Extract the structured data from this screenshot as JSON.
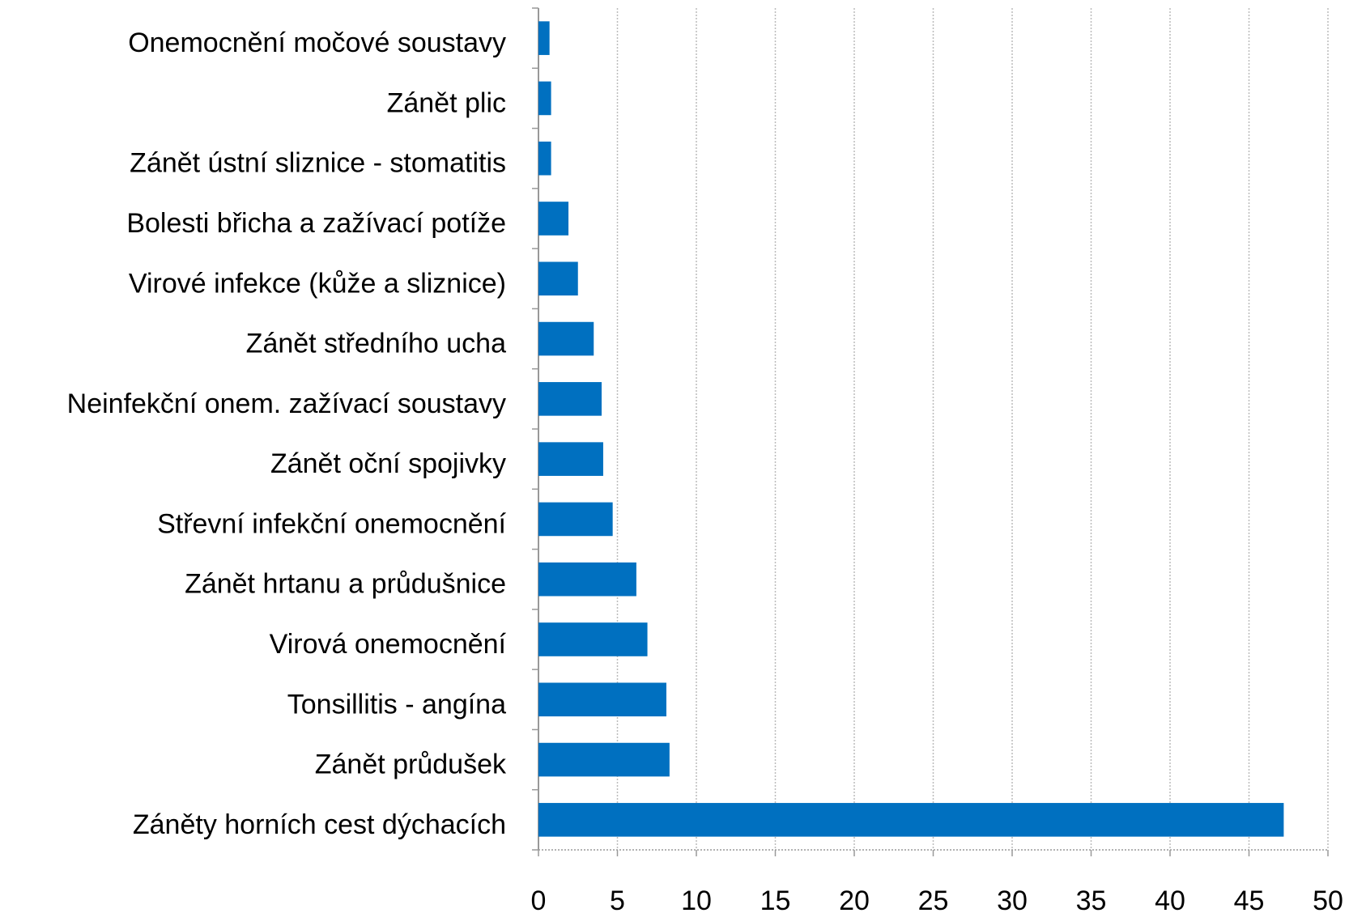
{
  "chart_data": {
    "type": "hbar",
    "categories": [
      "Onemocnění močové soustavy",
      "Zánět plic",
      "Zánět ústní sliznice - stomatitis",
      "Bolesti břicha a zažívací potíže",
      "Virové infekce (kůže a sliznice)",
      "Zánět středního ucha",
      "Neinfekční onem. zažívací soustavy",
      "Zánět oční spojivky",
      "Střevní infekční onemocnění",
      "Zánět hrtanu a průdušnice",
      "Virová onemocnění",
      "Tonsillitis - angína",
      "Zánět průdušek",
      "Záněty horních cest dýchacích"
    ],
    "values": [
      0.7,
      0.8,
      0.8,
      1.9,
      2.5,
      3.5,
      4.0,
      4.1,
      4.7,
      6.2,
      6.9,
      8.1,
      8.3,
      47.2
    ],
    "color": "#0070c0",
    "xlim": [
      0,
      50
    ],
    "xticks": [
      0,
      5,
      10,
      15,
      20,
      25,
      30,
      35,
      40,
      45,
      50
    ],
    "grid": true
  }
}
